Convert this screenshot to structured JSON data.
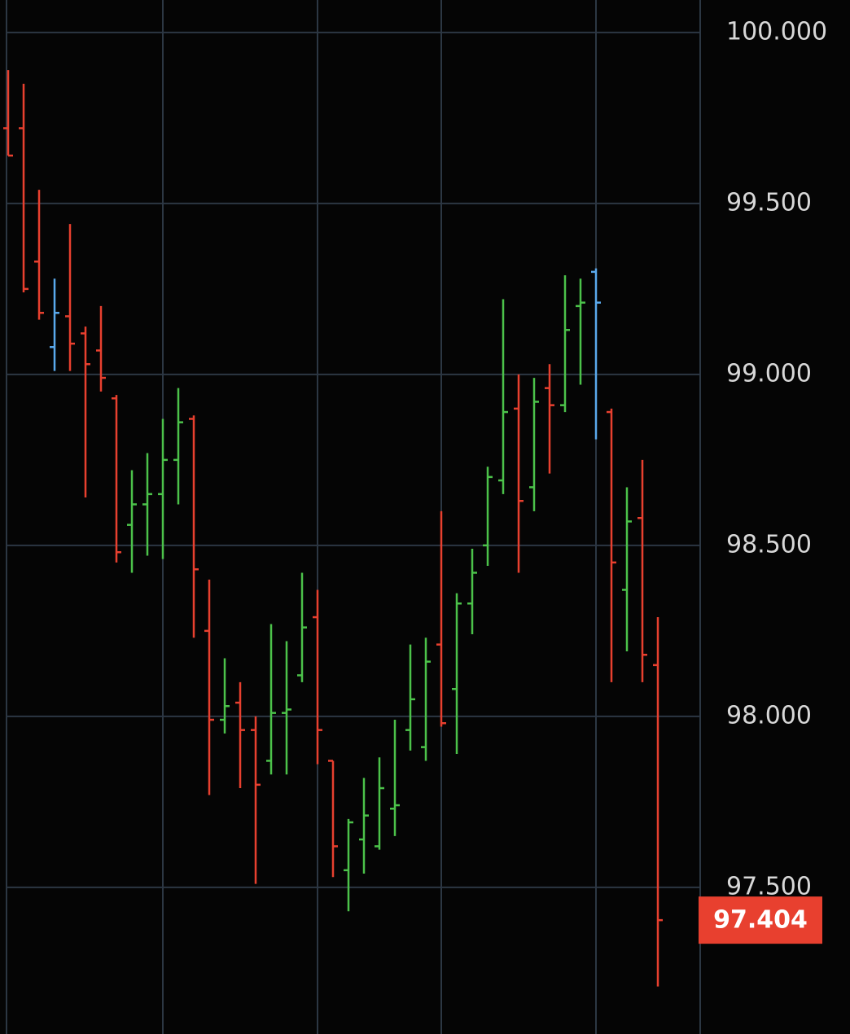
{
  "chart_data": {
    "type": "ohlc",
    "ylim": [
      97.071,
      100.095
    ],
    "yticks": [
      {
        "value": 100,
        "label": "100.000"
      },
      {
        "value": 99.5,
        "label": "99.500"
      },
      {
        "value": 99,
        "label": "99.000"
      },
      {
        "value": 98.5,
        "label": "98.500"
      },
      {
        "value": 98,
        "label": "98.000"
      },
      {
        "value": 97.5,
        "label": "97.500"
      }
    ],
    "grid": true,
    "series": [
      {
        "open": [
          99.72,
          99.72,
          99.33,
          99.08,
          99.17,
          99.12,
          99.07,
          98.93,
          98.56,
          98.62,
          98.65,
          98.75,
          98.87,
          98.25,
          97.99,
          98.04,
          97.96,
          97.87,
          98.01,
          98.12,
          98.29,
          97.87,
          97.55,
          97.64,
          97.62,
          97.73,
          97.96,
          97.91,
          98.21,
          98.08,
          98.33,
          98.5,
          98.69,
          98.9,
          98.67,
          98.96,
          98.91,
          99.2,
          99.3,
          98.89,
          98.37,
          98.58,
          98.15
        ],
        "high": [
          99.89,
          99.85,
          99.54,
          99.28,
          99.44,
          99.14,
          99.2,
          98.94,
          98.72,
          98.77,
          98.87,
          98.96,
          98.88,
          98.4,
          98.17,
          98.1,
          98.0,
          98.27,
          98.22,
          98.42,
          98.37,
          97.87,
          97.7,
          97.82,
          97.88,
          97.99,
          98.21,
          98.23,
          98.6,
          98.36,
          98.49,
          98.73,
          99.22,
          99.0,
          98.99,
          99.03,
          99.29,
          99.28,
          99.31,
          98.9,
          98.67,
          98.75,
          98.29
        ],
        "low": [
          99.64,
          99.24,
          99.16,
          99.01,
          99.01,
          98.64,
          98.95,
          98.45,
          98.42,
          98.47,
          98.46,
          98.62,
          98.23,
          97.77,
          97.95,
          97.79,
          97.51,
          97.83,
          97.83,
          98.1,
          97.86,
          97.53,
          97.43,
          97.54,
          97.61,
          97.65,
          97.9,
          97.87,
          97.97,
          97.89,
          98.24,
          98.44,
          98.65,
          98.42,
          98.6,
          98.71,
          98.89,
          98.97,
          98.81,
          98.1,
          98.19,
          98.1,
          97.21
        ],
        "close": [
          99.64,
          99.25,
          99.18,
          99.18,
          99.09,
          99.03,
          98.99,
          98.48,
          98.62,
          98.65,
          98.75,
          98.86,
          98.43,
          97.99,
          98.03,
          97.96,
          97.8,
          98.01,
          98.02,
          98.26,
          97.96,
          97.62,
          97.69,
          97.71,
          97.79,
          97.74,
          98.05,
          98.16,
          97.98,
          98.33,
          98.42,
          98.7,
          98.89,
          98.63,
          98.92,
          98.91,
          99.13,
          99.21,
          99.21,
          98.45,
          98.57,
          98.18,
          97.404
        ],
        "colors": [
          "#e8402f",
          "#e8402f",
          "#e8402f",
          "#5aa9ec",
          "#e8402f",
          "#e8402f",
          "#e8402f",
          "#e8402f",
          "#4cc24a",
          "#4cc24a",
          "#4cc24a",
          "#4cc24a",
          "#e8402f",
          "#e8402f",
          "#4cc24a",
          "#e8402f",
          "#e8402f",
          "#4cc24a",
          "#4cc24a",
          "#4cc24a",
          "#e8402f",
          "#e8402f",
          "#4cc24a",
          "#4cc24a",
          "#4cc24a",
          "#4cc24a",
          "#4cc24a",
          "#4cc24a",
          "#e8402f",
          "#4cc24a",
          "#4cc24a",
          "#4cc24a",
          "#4cc24a",
          "#e8402f",
          "#4cc24a",
          "#e8402f",
          "#4cc24a",
          "#4cc24a",
          "#5aa9ec",
          "#e8402f",
          "#4cc24a",
          "#e8402f",
          "#e8402f"
        ]
      }
    ],
    "last_price_color": "#e8402f"
  }
}
